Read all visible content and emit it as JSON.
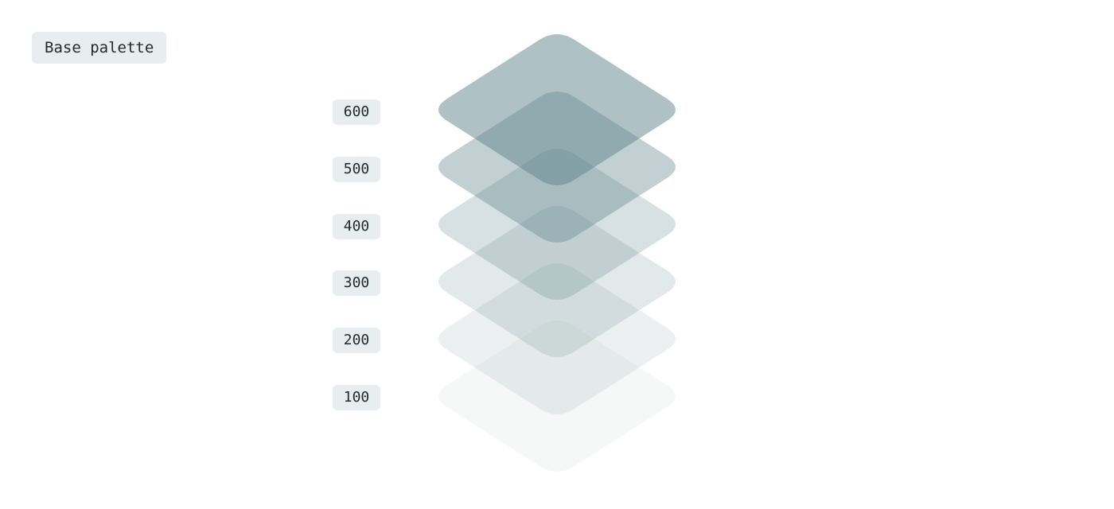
{
  "palette": {
    "title": "Base palette",
    "levels": [
      {
        "label": "600",
        "fill": "#5f838b",
        "opacity": 0.5
      },
      {
        "label": "500",
        "fill": "#5f838b",
        "opacity": 0.38
      },
      {
        "label": "400",
        "fill": "#5f838b",
        "opacity": 0.25
      },
      {
        "label": "300",
        "fill": "#5f838b",
        "opacity": 0.18
      },
      {
        "label": "200",
        "fill": "#5f838b",
        "opacity": 0.12
      },
      {
        "label": "100",
        "fill": "#5f838b",
        "opacity": 0.06
      }
    ]
  }
}
